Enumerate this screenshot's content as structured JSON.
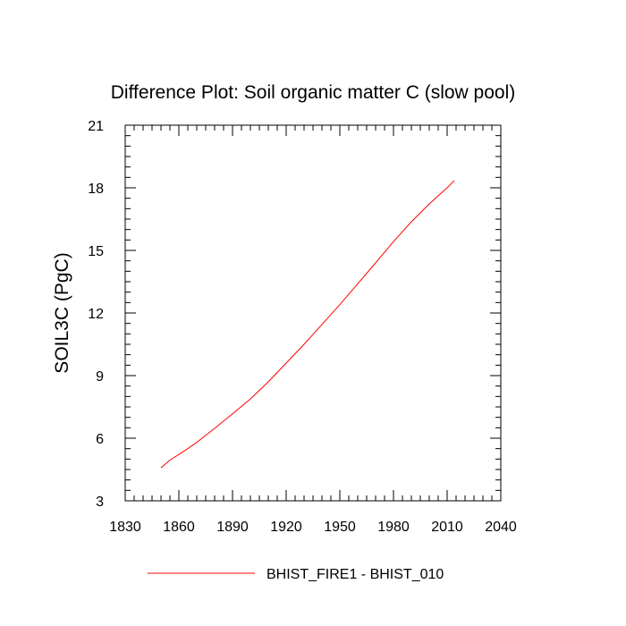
{
  "chart_data": {
    "type": "line",
    "title": "Difference Plot: Soil organic matter C (slow pool)",
    "xlabel": "",
    "ylabel": "SOIL3C  (PgC)",
    "xlim": [
      1830,
      2040
    ],
    "ylim": [
      3,
      21
    ],
    "x_ticks": [
      "1830",
      "1860",
      "1890",
      "1920",
      "1950",
      "1980",
      "2010",
      "2040"
    ],
    "y_ticks": [
      "3",
      "6",
      "9",
      "12",
      "15",
      "18",
      "21"
    ],
    "grid": false,
    "legend_position": "bottom",
    "series": [
      {
        "name": "BHIST_FIRE1 - BHIST_010",
        "color": "#ff0000",
        "x": [
          1850,
          1855,
          1860,
          1865,
          1870,
          1880,
          1890,
          1900,
          1910,
          1920,
          1930,
          1940,
          1950,
          1960,
          1970,
          1980,
          1990,
          2000,
          2010,
          2014
        ],
        "values": [
          4.58,
          4.95,
          5.22,
          5.5,
          5.8,
          6.47,
          7.17,
          7.88,
          8.7,
          9.6,
          10.5,
          11.45,
          12.4,
          13.4,
          14.4,
          15.42,
          16.37,
          17.23,
          18.0,
          18.35
        ]
      }
    ]
  }
}
